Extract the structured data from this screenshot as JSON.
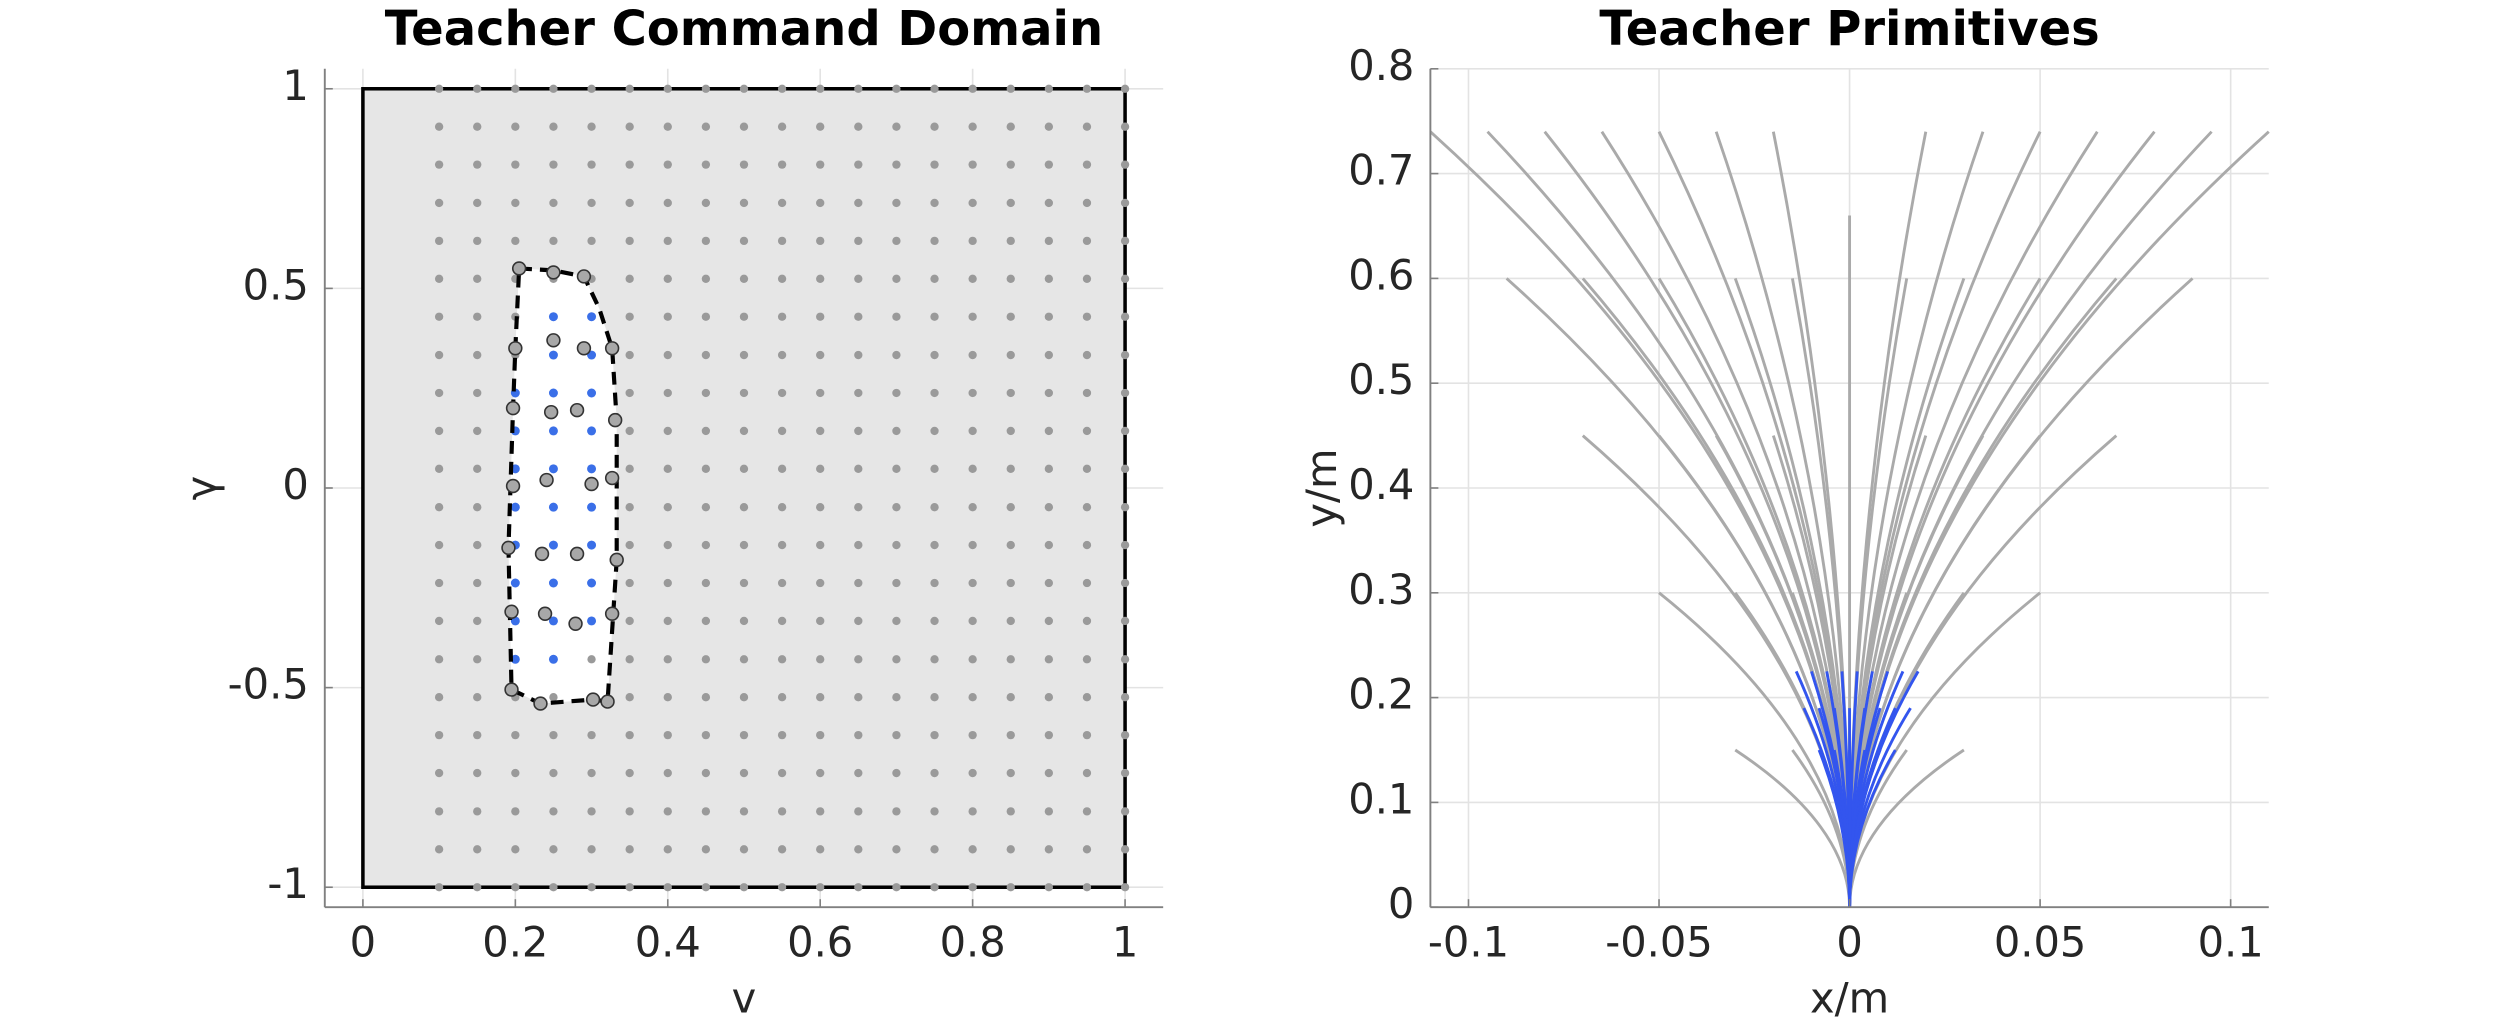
{
  "chart_data": [
    {
      "type": "command-domain",
      "title": "Teacher Command Domain",
      "x_label": "v",
      "y_label": "γ",
      "xlim": [
        -0.05,
        1.05
      ],
      "ylim": [
        -1.05,
        1.05
      ],
      "xticks": [
        0,
        0.2,
        0.4,
        0.6,
        0.8,
        1
      ],
      "yticks": [
        -1,
        -0.5,
        0,
        0.5,
        1
      ],
      "grid": true,
      "domain": {
        "v": [
          0,
          1
        ],
        "gamma": [
          -1,
          1
        ],
        "color": "#e6e6e6"
      },
      "command_grid": {
        "color": "#9a9a9a",
        "v": [
          0.1,
          0.15,
          0.2,
          0.25,
          0.3,
          0.35,
          0.4,
          0.45,
          0.5,
          0.55,
          0.6,
          0.65,
          0.7,
          0.75,
          0.8,
          0.85,
          0.9,
          0.95,
          1
        ],
        "gamma": [
          -1,
          -0.905,
          -0.81,
          -0.714,
          -0.619,
          -0.524,
          -0.429,
          -0.333,
          -0.238,
          -0.143,
          -0.048,
          0.048,
          0.143,
          0.238,
          0.333,
          0.429,
          0.524,
          0.619,
          0.714,
          0.81,
          0.905,
          1
        ]
      },
      "feasible": {
        "color": "#3a6fe8",
        "x": [
          0.2,
          0.2,
          0.2,
          0.2,
          0.2,
          0.2,
          0.2,
          0.2,
          0.25,
          0.25,
          0.25,
          0.25,
          0.25,
          0.25,
          0.25,
          0.25,
          0.25,
          0.25,
          0.3,
          0.3,
          0.3,
          0.3,
          0.3,
          0.3,
          0.3,
          0.3,
          0.3
        ],
        "y": [
          0.238,
          0.143,
          0.048,
          -0.048,
          -0.143,
          -0.238,
          -0.333,
          -0.429,
          0.429,
          0.333,
          0.238,
          0.143,
          0.048,
          -0.048,
          -0.143,
          -0.238,
          -0.333,
          -0.429,
          0.429,
          0.333,
          0.238,
          0.143,
          0.048,
          -0.048,
          -0.143,
          -0.238,
          -0.333
        ]
      },
      "boundary_samples": {
        "color": "#a8a8a8",
        "x": [
          0.205,
          0.25,
          0.29,
          0.2,
          0.25,
          0.29,
          0.327,
          0.197,
          0.247,
          0.281,
          0.331,
          0.197,
          0.241,
          0.3,
          0.327,
          0.191,
          0.235,
          0.281,
          0.333,
          0.195,
          0.239,
          0.279,
          0.327,
          0.195,
          0.233,
          0.302,
          0.321
        ],
        "y": [
          0.55,
          0.54,
          0.53,
          0.35,
          0.37,
          0.35,
          0.35,
          0.2,
          0.19,
          0.195,
          0.17,
          0.005,
          0.02,
          0.01,
          0.025,
          -0.15,
          -0.165,
          -0.165,
          -0.18,
          -0.31,
          -0.315,
          -0.34,
          -0.315,
          -0.505,
          -0.54,
          -0.53,
          -0.535
        ]
      },
      "boundary": {
        "x": [
          0.205,
          0.25,
          0.29,
          0.31,
          0.327,
          0.333,
          0.333,
          0.321,
          0.302,
          0.233,
          0.195,
          0.191,
          0.197,
          0.2
        ],
        "y": [
          0.55,
          0.545,
          0.53,
          0.45,
          0.35,
          0.17,
          -0.18,
          -0.535,
          -0.53,
          -0.54,
          -0.505,
          -0.15,
          0.2,
          0.35
        ]
      }
    },
    {
      "type": "primitives",
      "title": "Teacher Primitives",
      "x_label": "x/m",
      "y_label": "y/m",
      "xlim": [
        -0.11,
        0.11
      ],
      "ylim": [
        0,
        0.8
      ],
      "xticks": [
        -0.1,
        -0.05,
        0,
        0.05,
        0.1
      ],
      "yticks": [
        0,
        0.1,
        0.2,
        0.3,
        0.4,
        0.5,
        0.6,
        0.7,
        0.8
      ],
      "grid": true,
      "series": [
        {
          "color": "#aaaaaa",
          "x": [
            -0.11,
            -0.095,
            -0.08,
            -0.065,
            -0.05,
            -0.035,
            -0.02,
            0.02,
            0.035,
            0.05,
            0.065,
            0.08,
            0.095,
            0.11,
            0,
            -0.09,
            -0.07,
            -0.05,
            -0.03,
            -0.015,
            0.015,
            0.03,
            0.05,
            0.07,
            0.09,
            -0.07,
            -0.05,
            -0.035,
            -0.02,
            0.02,
            0.035,
            0.05,
            0.07,
            -0.05,
            -0.03,
            -0.015,
            0.015,
            0.03,
            0.05,
            -0.03,
            -0.015,
            0.015,
            0.03
          ],
          "y": [
            0.74,
            0.74,
            0.74,
            0.74,
            0.74,
            0.74,
            0.74,
            0.74,
            0.74,
            0.74,
            0.74,
            0.74,
            0.74,
            0.74,
            0.66,
            0.6,
            0.6,
            0.6,
            0.6,
            0.6,
            0.6,
            0.6,
            0.6,
            0.6,
            0.6,
            0.45,
            0.45,
            0.45,
            0.45,
            0.45,
            0.45,
            0.45,
            0.45,
            0.3,
            0.3,
            0.3,
            0.3,
            0.3,
            0.3,
            0.15,
            0.15,
            0.15,
            0.15
          ]
        },
        {
          "color": "#3355ee",
          "x": [
            -0.014,
            -0.01,
            -0.006,
            -0.002,
            0.002,
            0.006,
            0.01,
            0.014,
            0.018,
            -0.012,
            -0.008,
            -0.004,
            0,
            0.004,
            0.008,
            0.012,
            0.016,
            -0.008,
            -0.004,
            0,
            0.004,
            0.008,
            0.012
          ],
          "y": [
            0.225,
            0.225,
            0.225,
            0.225,
            0.225,
            0.225,
            0.225,
            0.225,
            0.225,
            0.19,
            0.19,
            0.19,
            0.19,
            0.19,
            0.19,
            0.19,
            0.19,
            0.15,
            0.15,
            0.15,
            0.15,
            0.15,
            0.15
          ]
        }
      ]
    }
  ]
}
